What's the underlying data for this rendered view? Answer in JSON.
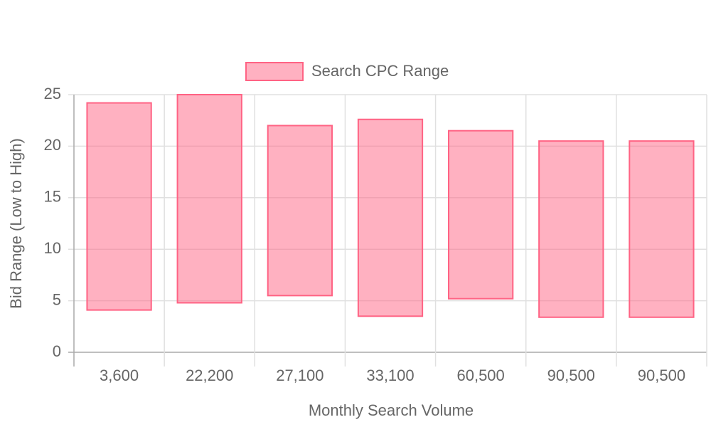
{
  "chart_data": {
    "type": "floating-bar",
    "categories": [
      "3,600",
      "22,200",
      "27,100",
      "33,100",
      "60,500",
      "90,500",
      "90,500"
    ],
    "series": [
      {
        "name": "Search CPC Range",
        "color": "#ff6384",
        "low": [
          4.1,
          4.8,
          5.5,
          3.5,
          5.2,
          3.4,
          3.4
        ],
        "high": [
          24.2,
          25,
          22,
          22.6,
          21.5,
          20.5,
          20.5
        ]
      }
    ],
    "x_label": "Monthly Search Volume",
    "y_label": "Bid Range (Low to High)",
    "ylim": [
      0,
      25
    ],
    "yticks": [
      0,
      5,
      10,
      15,
      20,
      25
    ],
    "grid": true,
    "legend": "top"
  }
}
